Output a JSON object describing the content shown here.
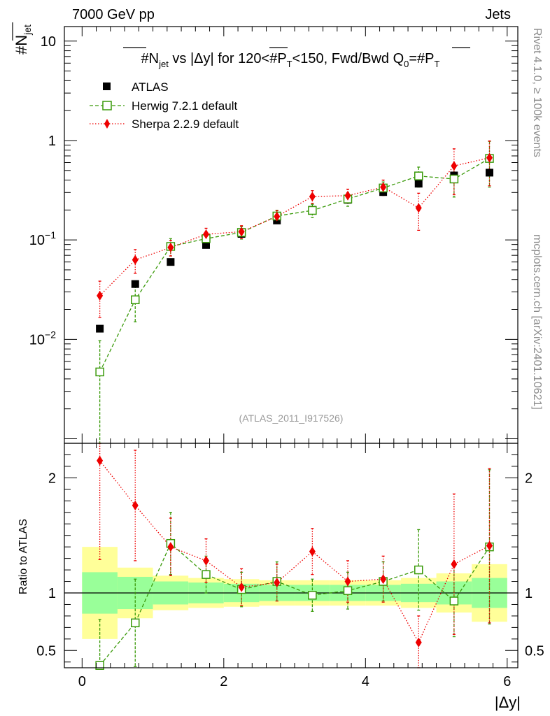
{
  "header": {
    "left": "7000 GeV pp",
    "right": "Jets"
  },
  "side_text": {
    "rivet": "Rivet 4.1.0, ≥ 100k events",
    "mcplots": "mcplots.cern.ch [arXiv:2401.10621]"
  },
  "colors": {
    "atlas": "#000000",
    "herwig": "#3a9a0a",
    "sherpa": "#ee0000",
    "band_inner": "#99ff99",
    "band_outer": "#ffff99"
  },
  "chart_data": {
    "type": "scatter",
    "title": "#N_jet vs |Δy| for 120<#P_T<150, Fwd/Bwd Q0=#P_T",
    "title_parts": {
      "a": "#N",
      "a_sub": "jet",
      "b": " vs |Δy|  for 120<#P",
      "b_sub": "T",
      "c": "<150, Fwd/Bwd Q",
      "c_sub": "0",
      "d": "=#P",
      "d_sub": "T"
    },
    "ylabel": {
      "main": "#N",
      "sub": "jet"
    },
    "xlabel": "|Δy|",
    "ratio_ylabel": "Ratio to ATLAS",
    "watermark": "(ATLAS_2011_I917526)",
    "xlim": [
      -0.25,
      6.15
    ],
    "ylim": [
      0.0009,
      14
    ],
    "ratio_ylim": [
      0.35,
      2.3
    ],
    "x_ticks": [
      "0",
      "2",
      "4",
      "6"
    ],
    "y_ticks": [
      {
        "base": "10",
        "exp": "",
        "value": 10
      },
      {
        "base": "1",
        "exp": "",
        "value": 1
      },
      {
        "base": "10",
        "exp": "−1",
        "value": 0.1
      },
      {
        "base": "10",
        "exp": "−2",
        "value": 0.01
      }
    ],
    "ratio_ticks": [
      "0.5",
      "1",
      "2"
    ],
    "legend": [
      "ATLAS",
      "Herwig 7.2.1 default",
      "Sherpa 2.2.9 default"
    ],
    "x": [
      0.25,
      0.75,
      1.25,
      1.75,
      2.25,
      2.75,
      3.25,
      3.75,
      4.25,
      4.75,
      5.25,
      5.75
    ],
    "series": [
      {
        "name": "ATLAS",
        "values": [
          0.0128,
          0.036,
          0.06,
          0.089,
          0.115,
          0.157,
          0.201,
          0.253,
          0.303,
          0.368,
          0.445,
          0.475
        ]
      },
      {
        "name": "Herwig 7.2.1 default",
        "values": [
          0.0047,
          0.025,
          0.086,
          0.103,
          0.119,
          0.174,
          0.198,
          0.258,
          0.333,
          0.44,
          0.41,
          0.66
        ],
        "err_lo": [
          0.0047,
          0.01,
          0.017,
          0.015,
          0.017,
          0.025,
          0.03,
          0.04,
          0.05,
          0.1,
          0.14,
          0.32
        ],
        "err_hi": [
          0.005,
          0.01,
          0.017,
          0.015,
          0.017,
          0.025,
          0.03,
          0.04,
          0.05,
          0.1,
          0.14,
          0.32
        ]
      },
      {
        "name": "Sherpa 2.2.9 default",
        "values": [
          0.0275,
          0.063,
          0.084,
          0.114,
          0.121,
          0.172,
          0.273,
          0.279,
          0.34,
          0.21,
          0.555,
          0.67
        ],
        "err_lo": [
          0.011,
          0.017,
          0.015,
          0.017,
          0.018,
          0.025,
          0.04,
          0.045,
          0.06,
          0.085,
          0.27,
          0.32
        ],
        "err_hi": [
          0.011,
          0.017,
          0.015,
          0.017,
          0.018,
          0.025,
          0.04,
          0.045,
          0.06,
          0.085,
          0.27,
          0.32
        ]
      }
    ],
    "ratio": {
      "herwig": [
        0.37,
        0.74,
        1.43,
        1.16,
        1.03,
        1.1,
        0.98,
        1.02,
        1.1,
        1.2,
        0.93,
        1.4
      ],
      "herwig_err": [
        0.4,
        0.38,
        0.27,
        0.16,
        0.15,
        0.17,
        0.14,
        0.16,
        0.17,
        0.35,
        0.31,
        0.67
      ],
      "sherpa": [
        2.15,
        1.76,
        1.4,
        1.28,
        1.05,
        1.09,
        1.36,
        1.1,
        1.12,
        0.57,
        1.25,
        1.41
      ],
      "sherpa_err": [
        0.86,
        0.48,
        0.25,
        0.19,
        0.16,
        0.16,
        0.2,
        0.18,
        0.2,
        0.23,
        0.61,
        0.67
      ]
    },
    "bands": {
      "edges": [
        0,
        0.5,
        1,
        1.5,
        2,
        2.5,
        3,
        3.5,
        4,
        4.5,
        5,
        5.5,
        6
      ],
      "inner_lo": [
        0.82,
        0.86,
        0.9,
        0.91,
        0.92,
        0.93,
        0.93,
        0.93,
        0.93,
        0.92,
        0.9,
        0.87
      ],
      "inner_hi": [
        1.18,
        1.14,
        1.1,
        1.09,
        1.08,
        1.07,
        1.07,
        1.07,
        1.07,
        1.08,
        1.1,
        1.13
      ],
      "outer_lo": [
        0.6,
        0.78,
        0.85,
        0.87,
        0.88,
        0.89,
        0.89,
        0.89,
        0.89,
        0.87,
        0.83,
        0.75
      ],
      "outer_hi": [
        1.4,
        1.22,
        1.15,
        1.13,
        1.12,
        1.11,
        1.11,
        1.11,
        1.11,
        1.13,
        1.17,
        1.25
      ]
    }
  }
}
